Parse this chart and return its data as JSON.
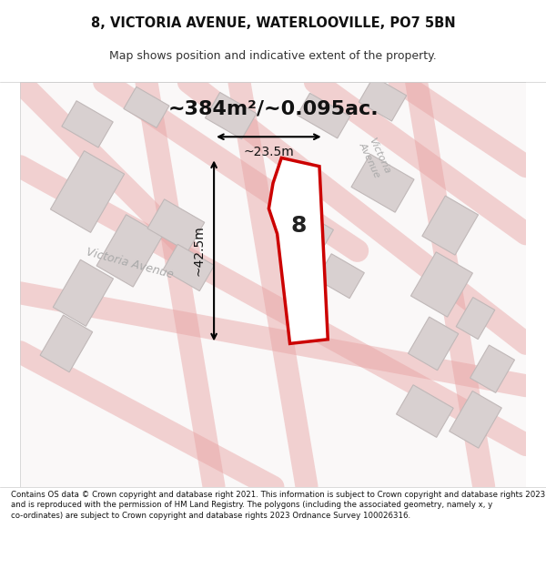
{
  "title_line1": "8, VICTORIA AVENUE, WATERLOOVILLE, PO7 5BN",
  "title_line2": "Map shows position and indicative extent of the property.",
  "area_text": "~384m²/~0.095ac.",
  "dim_vertical": "~42.5m",
  "dim_horizontal": "~23.5m",
  "number_label": "8",
  "footnote": "Contains OS data © Crown copyright and database right 2021. This information is subject to Crown copyright and database rights 2023 and is reproduced with the permission of HM Land Registry. The polygons (including the associated geometry, namely x, y co-ordinates) are subject to Crown copyright and database rights 2023 Ordnance Survey 100026316.",
  "bg_color": "#f5f0f0",
  "map_bg": "#faf8f8",
  "road_color": "#e8a0a0",
  "building_color": "#d8d0d0",
  "building_edge": "#c0b8b8",
  "property_color": "#ffffff",
  "property_edge": "#cc0000",
  "street_label1": "Victoria Avenue",
  "street_label2": "Victoria\nAvenue"
}
